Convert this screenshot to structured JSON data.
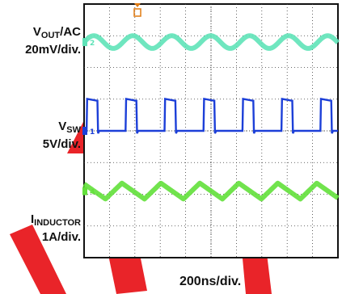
{
  "chart_data": {
    "type": "line",
    "title": "",
    "xlabel": "200ns/div.",
    "grid": true,
    "series": [
      {
        "name": "VOUT/AC",
        "label_main": "V",
        "label_sub": "OUT",
        "label_suffix": "/AC",
        "scale": "20mV/div.",
        "color": "#5fe3b8",
        "marker": "2",
        "shape": "ripple",
        "ripple_amplitude_div": 0.2,
        "period_ns": 307,
        "baseline_div": 2.8
      },
      {
        "name": "VSW",
        "label_main": "V",
        "label_sub": "SW",
        "scale": "5V/div.",
        "color": "#1c3fd8",
        "marker": "1",
        "shape": "pulse",
        "high_div": 0.95,
        "low_div": 0,
        "period_ns": 307,
        "on_time_ns": 85,
        "baseline_div": 0
      },
      {
        "name": "IINDUCTOR",
        "label_main": "I",
        "label_sub": "INDUCTOR",
        "scale": "1A/div.",
        "color": "#62e03a",
        "marker": "4",
        "shape": "triangle",
        "ripple_amplitude_div": 0.25,
        "period_ns": 307,
        "baseline_div": -1.9
      }
    ],
    "xlim_div": [
      0,
      10
    ],
    "ylim_div": [
      -4,
      4
    ],
    "time_per_div_ns": 200
  },
  "icons": {
    "watermark": "red-diagonal-watermark-icon",
    "trigger_marker": "trigger-marker-icon"
  }
}
